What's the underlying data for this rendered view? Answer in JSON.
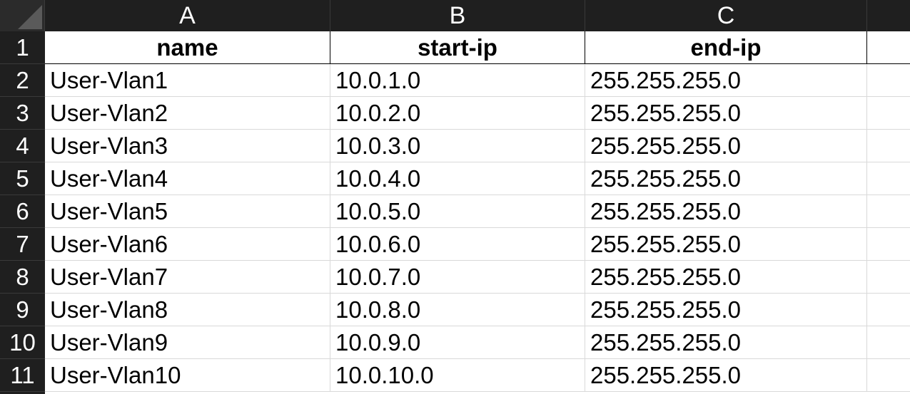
{
  "columns": [
    "A",
    "B",
    "C"
  ],
  "header": {
    "name": "name",
    "start_ip": "start-ip",
    "end_ip": "end-ip"
  },
  "row_numbers": [
    "1",
    "2",
    "3",
    "4",
    "5",
    "6",
    "7",
    "8",
    "9",
    "10",
    "11"
  ],
  "rows": [
    {
      "name": "User-Vlan1",
      "start_ip": "10.0.1.0",
      "end_ip": "255.255.255.0"
    },
    {
      "name": "User-Vlan2",
      "start_ip": "10.0.2.0",
      "end_ip": "255.255.255.0"
    },
    {
      "name": "User-Vlan3",
      "start_ip": "10.0.3.0",
      "end_ip": "255.255.255.0"
    },
    {
      "name": "User-Vlan4",
      "start_ip": "10.0.4.0",
      "end_ip": "255.255.255.0"
    },
    {
      "name": "User-Vlan5",
      "start_ip": "10.0.5.0",
      "end_ip": "255.255.255.0"
    },
    {
      "name": "User-Vlan6",
      "start_ip": "10.0.6.0",
      "end_ip": "255.255.255.0"
    },
    {
      "name": "User-Vlan7",
      "start_ip": "10.0.7.0",
      "end_ip": "255.255.255.0"
    },
    {
      "name": "User-Vlan8",
      "start_ip": "10.0.8.0",
      "end_ip": "255.255.255.0"
    },
    {
      "name": "User-Vlan9",
      "start_ip": "10.0.9.0",
      "end_ip": "255.255.255.0"
    },
    {
      "name": "User-Vlan10",
      "start_ip": "10.0.10.0",
      "end_ip": "255.255.255.0"
    }
  ],
  "icons": {
    "select_all": "select-all-triangle-icon"
  },
  "colors": {
    "header_bg": "#1f1f1f",
    "header_text": "#ffffff",
    "gridline": "#d9d9d9"
  }
}
